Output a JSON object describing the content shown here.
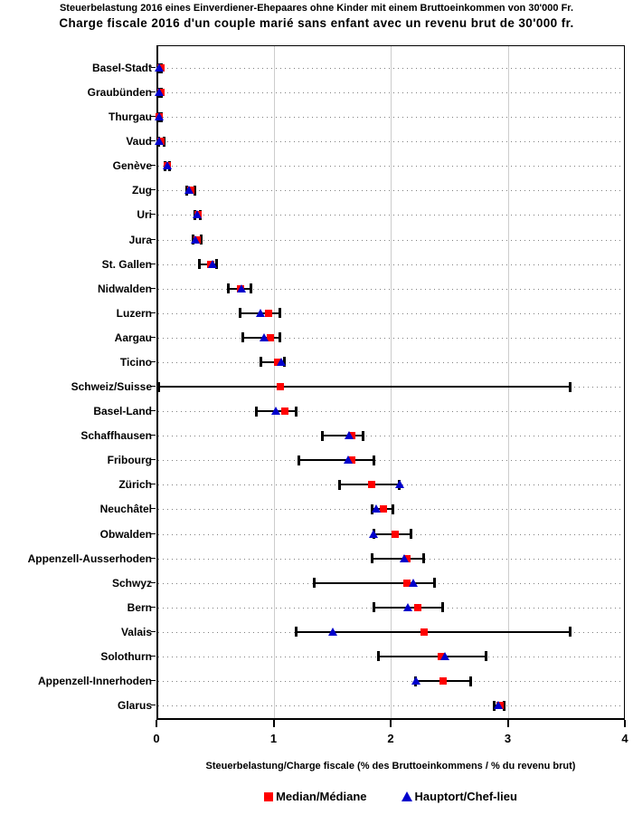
{
  "title": {
    "line_de": "Steuerbelastung 2016 eines Einverdiener-Ehepaares ohne Kinder mit einem Bruttoeinkommen von 30'000 Fr.",
    "line_fr": "Charge fiscale 2016 d'un couple marié sans enfant avec un revenu brut de 30'000 fr."
  },
  "x_axis": {
    "label": "Steuerbelastung/Charge fiscale (% des Bruttoeinkommens / % du revenu brut)",
    "ticks": [
      0,
      1,
      2,
      3,
      4
    ],
    "range": [
      0,
      4
    ]
  },
  "legend": {
    "median_label": "Median/Médiane",
    "hauptort_label": "Hauptort/Chef-lieu"
  },
  "colors": {
    "median": "#ff0000",
    "hauptort": "#0000cc",
    "range_bar": "#000000",
    "gridline": "#cccccc",
    "dotted_line": "#7f7f7f"
  },
  "chart_data": {
    "type": "scatter",
    "subtype": "dot-range-plot",
    "title": "Steuerbelastung 2016 eines Einverdiener-Ehepaares ohne Kinder mit einem Bruttoeinkommen von 30'000 Fr. / Charge fiscale 2016 d'un couple marié sans enfant avec un revenu brut de 30'000 fr.",
    "xlabel": "Steuerbelastung/Charge fiscale (% des Bruttoeinkommens / % du revenu brut)",
    "xlim": [
      0,
      4
    ],
    "grid": "vertical-solid-horizontal-dotted",
    "legend_position": "bottom",
    "series_legend": [
      "Median/Médiane",
      "Hauptort/Chef-lieu"
    ],
    "rows": [
      {
        "name": "Basel-Stadt",
        "min": 0.0,
        "max": 0.03,
        "median": 0.02,
        "hauptort": 0.01
      },
      {
        "name": "Graubünden",
        "min": 0.0,
        "max": 0.03,
        "median": 0.02,
        "hauptort": 0.01
      },
      {
        "name": "Thurgau",
        "min": 0.0,
        "max": 0.03,
        "median": 0.01,
        "hauptort": 0.01
      },
      {
        "name": "Vaud",
        "min": 0.0,
        "max": 0.05,
        "median": 0.02,
        "hauptort": 0.01
      },
      {
        "name": "Genève",
        "min": 0.06,
        "max": 0.1,
        "median": 0.08,
        "hauptort": 0.08
      },
      {
        "name": "Zug",
        "min": 0.24,
        "max": 0.31,
        "median": 0.28,
        "hauptort": 0.26
      },
      {
        "name": "Uri",
        "min": 0.31,
        "max": 0.36,
        "median": 0.34,
        "hauptort": 0.33
      },
      {
        "name": "Jura",
        "min": 0.3,
        "max": 0.37,
        "median": 0.33,
        "hauptort": 0.32
      },
      {
        "name": "St. Gallen",
        "min": 0.35,
        "max": 0.5,
        "median": 0.45,
        "hauptort": 0.46
      },
      {
        "name": "Nidwalden",
        "min": 0.6,
        "max": 0.79,
        "median": 0.7,
        "hauptort": 0.71
      },
      {
        "name": "Luzern",
        "min": 0.7,
        "max": 1.04,
        "median": 0.94,
        "hauptort": 0.87
      },
      {
        "name": "Aargau",
        "min": 0.72,
        "max": 1.04,
        "median": 0.96,
        "hauptort": 0.9
      },
      {
        "name": "Ticino",
        "min": 0.88,
        "max": 1.08,
        "median": 1.02,
        "hauptort": 1.05
      },
      {
        "name": "Schweiz/Suisse",
        "min": 0.0,
        "max": 3.52,
        "median": 1.04,
        "hauptort": null
      },
      {
        "name": "Basel-Land",
        "min": 0.84,
        "max": 1.18,
        "median": 1.08,
        "hauptort": 1.0
      },
      {
        "name": "Schaffhausen",
        "min": 1.4,
        "max": 1.75,
        "median": 1.65,
        "hauptort": 1.63
      },
      {
        "name": "Fribourg",
        "min": 1.2,
        "max": 1.84,
        "median": 1.65,
        "hauptort": 1.62
      },
      {
        "name": "Zürich",
        "min": 1.55,
        "max": 2.06,
        "median": 1.82,
        "hauptort": 2.06
      },
      {
        "name": "Neuchâtel",
        "min": 1.83,
        "max": 2.0,
        "median": 1.92,
        "hauptort": 1.86
      },
      {
        "name": "Obwalden",
        "min": 1.84,
        "max": 2.16,
        "median": 2.02,
        "hauptort": 1.84
      },
      {
        "name": "Appenzell-Ausserhoden",
        "min": 1.83,
        "max": 2.27,
        "median": 2.12,
        "hauptort": 2.1
      },
      {
        "name": "Schwyz",
        "min": 1.33,
        "max": 2.36,
        "median": 2.12,
        "hauptort": 2.18
      },
      {
        "name": "Bern",
        "min": 1.84,
        "max": 2.43,
        "median": 2.22,
        "hauptort": 2.13
      },
      {
        "name": "Valais",
        "min": 1.18,
        "max": 3.52,
        "median": 2.27,
        "hauptort": 1.49
      },
      {
        "name": "Solothurn",
        "min": 1.88,
        "max": 2.8,
        "median": 2.42,
        "hauptort": 2.45
      },
      {
        "name": "Appenzell-Innerhoden",
        "min": 2.2,
        "max": 2.67,
        "median": 2.43,
        "hauptort": 2.2
      },
      {
        "name": "Glarus",
        "min": 2.87,
        "max": 2.95,
        "median": 2.92,
        "hauptort": 2.9
      }
    ]
  }
}
